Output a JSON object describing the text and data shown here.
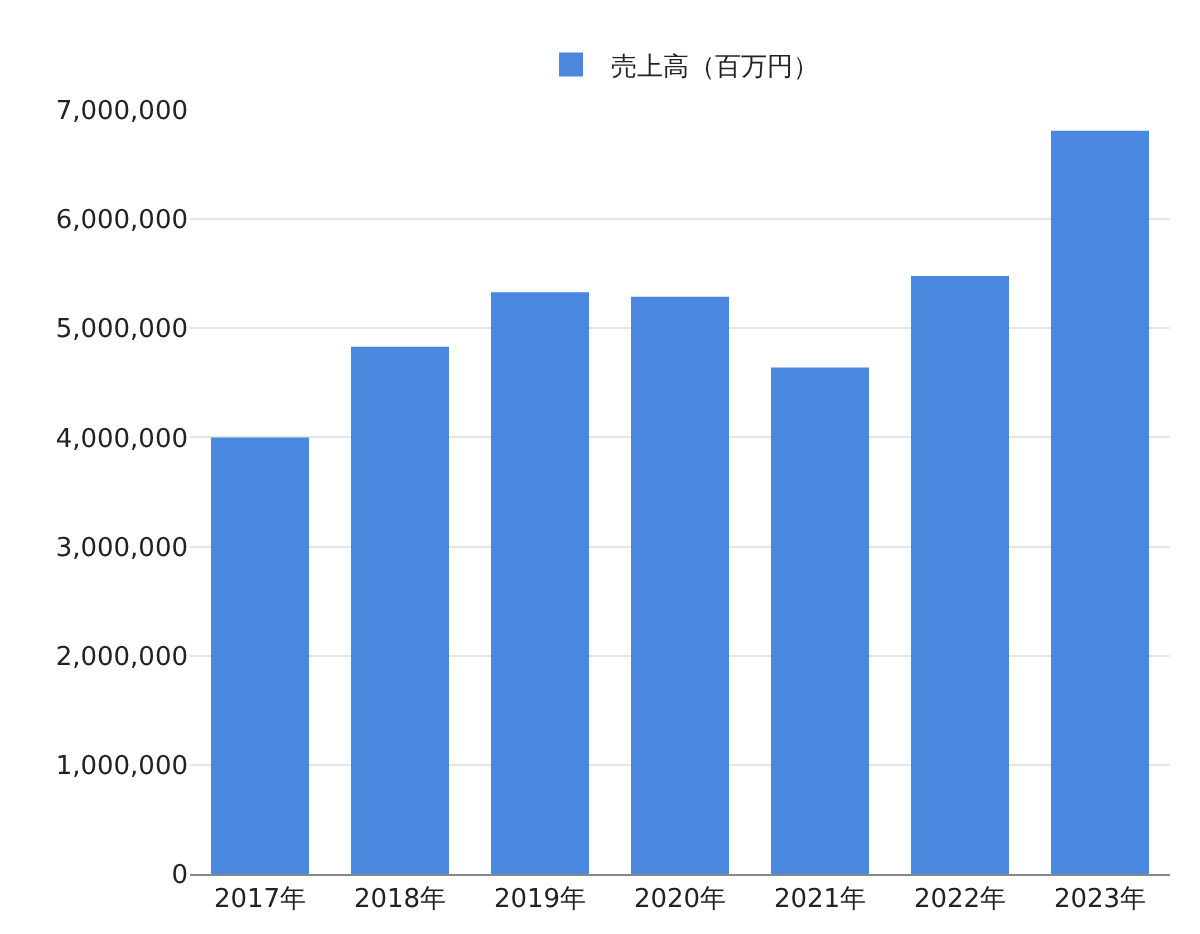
{
  "chart_data": {
    "type": "bar",
    "categories": [
      "2017年",
      "2018年",
      "2019年",
      "2020年",
      "2021年",
      "2022年",
      "2023年"
    ],
    "series": [
      {
        "name": "売上高（百万円）",
        "color": "#4a88e0",
        "values": [
          4000000,
          4830000,
          5330000,
          5290000,
          4640000,
          5480000,
          6810000
        ]
      }
    ],
    "ylim": [
      0,
      7000000
    ],
    "yticks": [
      {
        "value": 0,
        "label": "0"
      },
      {
        "value": 1000000,
        "label": "1,000,000"
      },
      {
        "value": 2000000,
        "label": "2,000,000"
      },
      {
        "value": 3000000,
        "label": "3,000,000"
      },
      {
        "value": 4000000,
        "label": "4,000,000"
      },
      {
        "value": 5000000,
        "label": "5,000,000"
      },
      {
        "value": 6000000,
        "label": "6,000,000"
      },
      {
        "value": 7000000,
        "label": "7,000,000"
      }
    ],
    "grid": "y",
    "legend": "top"
  }
}
